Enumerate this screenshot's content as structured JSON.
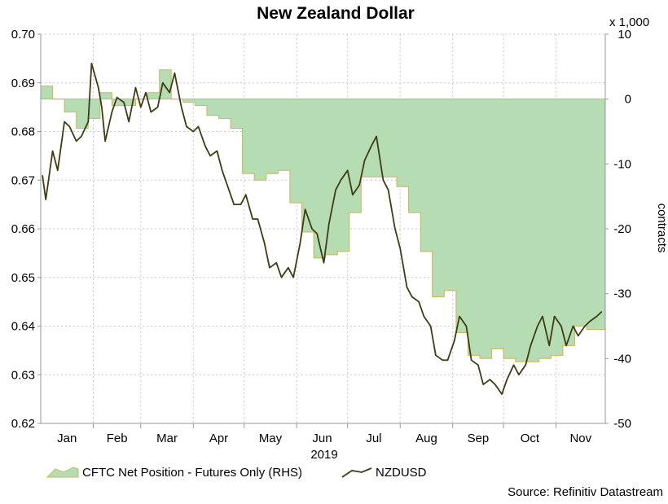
{
  "chart_data": {
    "type": "line",
    "title": "New Zealand Dollar",
    "x_axis": {
      "months": [
        "Jan",
        "Feb",
        "Mar",
        "Apr",
        "May",
        "Jun",
        "Jul",
        "Aug",
        "Sep",
        "Oct",
        "Nov"
      ],
      "year_label": "2019",
      "range": [
        "2019-01-01",
        "2019-11-30"
      ]
    },
    "y_left": {
      "ticks": [
        "0.70",
        "0.69",
        "0.68",
        "0.67",
        "0.66",
        "0.65",
        "0.64",
        "0.63",
        "0.62"
      ],
      "ylim": [
        0.62,
        0.7
      ]
    },
    "y_right": {
      "ticks": [
        "10",
        "0",
        "-10",
        "-20",
        "-30",
        "-40",
        "-50"
      ],
      "ylim": [
        -50,
        10
      ],
      "multiplier_label": "x 1,000",
      "label": "contracts"
    },
    "grid": true,
    "legend": {
      "placement": "bottom-left"
    },
    "colors": {
      "area_fill": "#b5dcb3",
      "area_edge": "#c8b65a",
      "line": "#3d3c15",
      "grid": "#c8c8c8"
    },
    "series": [
      {
        "name": "CFTC Net Position - Futures Only (RHS)",
        "kind": "area",
        "axis": "right",
        "x": [
          "2019-01-01",
          "2019-01-08",
          "2019-01-15",
          "2019-01-22",
          "2019-01-29",
          "2019-02-05",
          "2019-02-12",
          "2019-02-19",
          "2019-02-26",
          "2019-03-05",
          "2019-03-12",
          "2019-03-19",
          "2019-03-26",
          "2019-04-02",
          "2019-04-09",
          "2019-04-16",
          "2019-04-23",
          "2019-04-30",
          "2019-05-07",
          "2019-05-14",
          "2019-05-21",
          "2019-05-28",
          "2019-06-04",
          "2019-06-11",
          "2019-06-18",
          "2019-06-25",
          "2019-07-02",
          "2019-07-09",
          "2019-07-16",
          "2019-07-23",
          "2019-07-30",
          "2019-08-06",
          "2019-08-13",
          "2019-08-20",
          "2019-08-27",
          "2019-09-03",
          "2019-09-10",
          "2019-09-17",
          "2019-09-24",
          "2019-10-01",
          "2019-10-08",
          "2019-10-15",
          "2019-10-22",
          "2019-10-29",
          "2019-11-05",
          "2019-11-12",
          "2019-11-19",
          "2019-11-26"
        ],
        "values": [
          2,
          0,
          -2,
          -4.5,
          -3,
          1,
          -1,
          -1,
          0,
          1,
          4.5,
          0,
          -0.5,
          -1,
          -2.5,
          -3,
          -4.5,
          -11.5,
          -12.5,
          -11.5,
          -11,
          -16,
          -20.5,
          -24.5,
          -24,
          -23.5,
          -17.5,
          -12,
          -12,
          -12,
          -13.5,
          -17.5,
          -23.5,
          -30.5,
          -29.5,
          -36,
          -39.5,
          -40,
          -38.5,
          -40,
          -40.5,
          -40.5,
          -40,
          -39.5,
          -38,
          -35,
          -35.5,
          -35.5
        ]
      },
      {
        "name": "NZDUSD",
        "kind": "line",
        "axis": "left",
        "x": [
          "2019-01-02",
          "2019-01-04",
          "2019-01-08",
          "2019-01-11",
          "2019-01-15",
          "2019-01-18",
          "2019-01-22",
          "2019-01-25",
          "2019-01-29",
          "2019-01-31",
          "2019-02-04",
          "2019-02-06",
          "2019-02-08",
          "2019-02-12",
          "2019-02-15",
          "2019-02-19",
          "2019-02-22",
          "2019-02-26",
          "2019-03-01",
          "2019-03-04",
          "2019-03-07",
          "2019-03-11",
          "2019-03-14",
          "2019-03-18",
          "2019-03-21",
          "2019-03-25",
          "2019-03-28",
          "2019-04-01",
          "2019-04-04",
          "2019-04-08",
          "2019-04-11",
          "2019-04-15",
          "2019-04-18",
          "2019-04-22",
          "2019-04-25",
          "2019-04-29",
          "2019-05-02",
          "2019-05-06",
          "2019-05-09",
          "2019-05-13",
          "2019-05-16",
          "2019-05-20",
          "2019-05-23",
          "2019-05-27",
          "2019-05-30",
          "2019-06-03",
          "2019-06-06",
          "2019-06-10",
          "2019-06-13",
          "2019-06-17",
          "2019-06-20",
          "2019-06-24",
          "2019-06-27",
          "2019-07-01",
          "2019-07-04",
          "2019-07-08",
          "2019-07-11",
          "2019-07-15",
          "2019-07-18",
          "2019-07-22",
          "2019-07-25",
          "2019-07-29",
          "2019-08-01",
          "2019-08-05",
          "2019-08-08",
          "2019-08-12",
          "2019-08-15",
          "2019-08-19",
          "2019-08-22",
          "2019-08-26",
          "2019-08-29",
          "2019-09-02",
          "2019-09-05",
          "2019-09-09",
          "2019-09-12",
          "2019-09-16",
          "2019-09-19",
          "2019-09-23",
          "2019-09-26",
          "2019-09-30",
          "2019-10-03",
          "2019-10-07",
          "2019-10-10",
          "2019-10-14",
          "2019-10-17",
          "2019-10-21",
          "2019-10-24",
          "2019-10-28",
          "2019-10-31",
          "2019-11-04",
          "2019-11-07",
          "2019-11-11",
          "2019-11-14",
          "2019-11-18",
          "2019-11-21",
          "2019-11-25",
          "2019-11-28"
        ],
        "values": [
          0.671,
          0.666,
          0.676,
          0.672,
          0.682,
          0.681,
          0.678,
          0.679,
          0.682,
          0.694,
          0.689,
          0.685,
          0.678,
          0.684,
          0.687,
          0.686,
          0.682,
          0.689,
          0.685,
          0.688,
          0.684,
          0.685,
          0.69,
          0.688,
          0.692,
          0.685,
          0.681,
          0.68,
          0.681,
          0.677,
          0.675,
          0.676,
          0.672,
          0.668,
          0.665,
          0.665,
          0.667,
          0.662,
          0.662,
          0.657,
          0.652,
          0.653,
          0.65,
          0.652,
          0.65,
          0.657,
          0.664,
          0.66,
          0.659,
          0.653,
          0.661,
          0.668,
          0.67,
          0.672,
          0.667,
          0.669,
          0.674,
          0.677,
          0.679,
          0.67,
          0.668,
          0.66,
          0.656,
          0.648,
          0.646,
          0.645,
          0.642,
          0.64,
          0.634,
          0.633,
          0.633,
          0.637,
          0.642,
          0.64,
          0.633,
          0.632,
          0.628,
          0.629,
          0.628,
          0.626,
          0.629,
          0.632,
          0.63,
          0.632,
          0.636,
          0.64,
          0.642,
          0.636,
          0.642,
          0.64,
          0.636,
          0.64,
          0.638,
          0.64,
          0.641,
          0.642,
          0.643
        ]
      }
    ],
    "source_text": "Source: Refinitiv Datastream"
  }
}
